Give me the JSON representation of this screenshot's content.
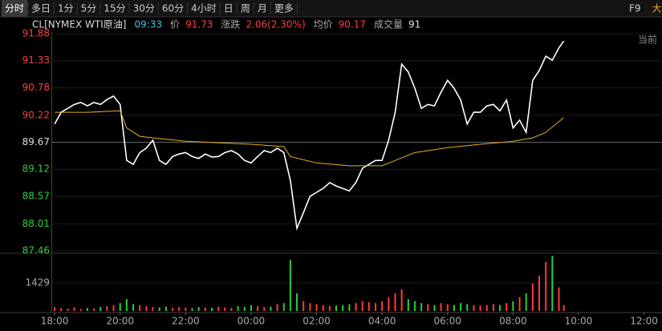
{
  "tabs": [
    "分时",
    "多日",
    "1分",
    "5分",
    "15分",
    "30分",
    "60分",
    "4小时",
    "日",
    "周",
    "月",
    "更多"
  ],
  "tab_right": [
    "F9",
    "大"
  ],
  "quote": {
    "name": "CL[NYMEX WTI原油]",
    "time": "09:33",
    "price_label": "价",
    "price": 91.73,
    "change_label": "涨跌",
    "change": "2.06(2.30%)",
    "avg_label": "均价",
    "avg": 90.17,
    "vol_label": "成交量",
    "vol": 91
  },
  "corner_label": "当前",
  "chart_data": [
    {
      "type": "line",
      "prev_close": 89.67,
      "up_color": "#ff3b3b",
      "down_color": "#2ecc40",
      "grid": true,
      "ylim": [
        87.46,
        91.88
      ],
      "yticks": [
        91.88,
        91.33,
        90.78,
        90.22,
        89.67,
        89.12,
        88.57,
        88.01,
        87.46
      ],
      "xlim": [
        -0.1,
        18.5
      ],
      "xticks": [
        {
          "value": 0,
          "label": "18:00"
        },
        {
          "value": 2,
          "label": "20:00"
        },
        {
          "value": 4,
          "label": "22:00"
        },
        {
          "value": 6,
          "label": "00:00"
        },
        {
          "value": 8,
          "label": "02:00"
        },
        {
          "value": 10,
          "label": "04:00"
        },
        {
          "value": 12,
          "label": "06:00"
        },
        {
          "value": 14,
          "label": "08:00"
        },
        {
          "value": 16,
          "label": "10:00"
        },
        {
          "value": 18,
          "label": "12:00"
        }
      ],
      "x": [
        0,
        0.2,
        0.4,
        0.6,
        0.8,
        1,
        1.2,
        1.4,
        1.6,
        1.8,
        2,
        2.2,
        2.4,
        2.6,
        2.8,
        3,
        3.2,
        3.4,
        3.6,
        3.8,
        4,
        4.2,
        4.4,
        4.6,
        4.8,
        5,
        5.2,
        5.4,
        5.6,
        5.8,
        6,
        6.2,
        6.4,
        6.6,
        6.8,
        7,
        7.2,
        7.4,
        7.6,
        7.8,
        8,
        8.2,
        8.4,
        8.6,
        8.8,
        9,
        9.2,
        9.4,
        9.6,
        9.8,
        10,
        10.2,
        10.4,
        10.6,
        10.8,
        11,
        11.2,
        11.4,
        11.6,
        11.8,
        12,
        12.2,
        12.4,
        12.6,
        12.8,
        13,
        13.2,
        13.4,
        13.6,
        13.8,
        14,
        14.2,
        14.4,
        14.6,
        14.8,
        15,
        15.2,
        15.4,
        15.55
      ],
      "series": [
        {
          "name": "price",
          "color": "#ffffff",
          "values": [
            90.04,
            90.28,
            90.36,
            90.44,
            90.48,
            90.41,
            90.48,
            90.44,
            90.54,
            90.61,
            90.44,
            89.3,
            89.22,
            89.46,
            89.55,
            89.71,
            89.3,
            89.22,
            89.38,
            89.43,
            89.46,
            89.38,
            89.34,
            89.43,
            89.37,
            89.38,
            89.46,
            89.5,
            89.43,
            89.3,
            89.25,
            89.38,
            89.5,
            89.46,
            89.55,
            89.46,
            88.89,
            87.92,
            88.24,
            88.57,
            88.65,
            88.73,
            88.85,
            88.78,
            88.73,
            88.68,
            88.85,
            89.14,
            89.22,
            89.3,
            89.3,
            89.71,
            90.28,
            91.26,
            91.1,
            90.77,
            90.36,
            90.44,
            90.41,
            90.69,
            90.93,
            90.77,
            90.53,
            90.04,
            90.28,
            90.28,
            90.41,
            90.44,
            90.31,
            90.53,
            89.96,
            90.12,
            89.87,
            90.93,
            91.13,
            91.42,
            91.34,
            91.59,
            91.73
          ]
        },
        {
          "name": "average",
          "color": "#e8b020",
          "x": [
            0,
            1,
            2,
            2.2,
            2.6,
            3,
            4,
            5,
            6,
            7,
            7.2,
            8,
            9,
            10,
            10.4,
            11,
            12,
            13,
            14,
            14.6,
            15,
            15.55
          ],
          "values": [
            90.28,
            90.28,
            90.31,
            89.96,
            89.79,
            89.76,
            89.69,
            89.66,
            89.63,
            89.58,
            89.38,
            89.25,
            89.19,
            89.19,
            89.3,
            89.46,
            89.56,
            89.63,
            89.69,
            89.76,
            89.87,
            90.17
          ]
        }
      ]
    },
    {
      "type": "bar",
      "ylim": [
        0,
        2858
      ],
      "yticks": [
        1429
      ],
      "values": [
        200,
        150,
        120,
        180,
        100,
        150,
        130,
        200,
        250,
        300,
        400,
        600,
        350,
        300,
        250,
        200,
        180,
        220,
        150,
        200,
        180,
        150,
        200,
        170,
        160,
        220,
        180,
        150,
        250,
        200,
        300,
        250,
        200,
        220,
        350,
        400,
        2600,
        900,
        500,
        400,
        350,
        300,
        250,
        280,
        300,
        350,
        400,
        500,
        450,
        400,
        500,
        700,
        900,
        1100,
        600,
        500,
        400,
        350,
        300,
        400,
        350,
        300,
        400,
        350,
        300,
        280,
        300,
        350,
        300,
        400,
        500,
        700,
        900,
        1400,
        1800,
        2500,
        2800,
        1200,
        300
      ]
    }
  ]
}
